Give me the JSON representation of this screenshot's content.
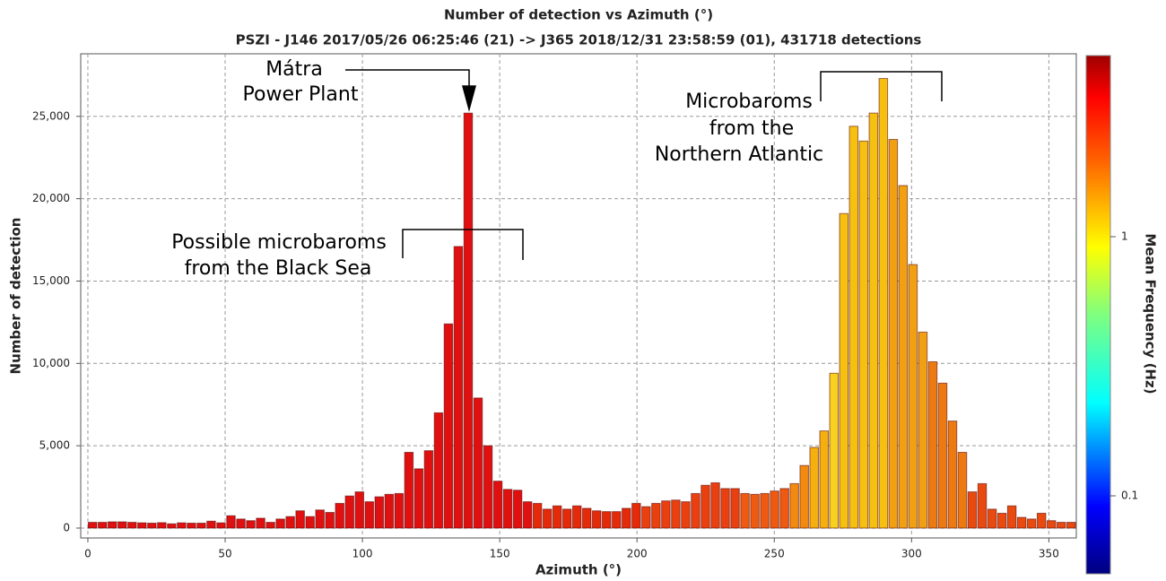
{
  "chart_data": {
    "type": "histogram",
    "title": "Number of detection vs Azimuth (°)",
    "subtitle": "PSZI - J146 2017/05/26 06:25:46 (21) -> J365 2018/12/31 23:58:59 (01), 431718 detections",
    "xlabel": "Azimuth (°)",
    "ylabel": "Number of detection",
    "colorbar_label": "Mean Frequency (Hz)",
    "bins": [
      0,
      3.6,
      7.2,
      10.8,
      14.4,
      18,
      21.6,
      25.2,
      28.8,
      32.4,
      36,
      39.6,
      43.2,
      46.8,
      50.4,
      54,
      57.6,
      61.2,
      64.8,
      68.4,
      72,
      75.6,
      79.2,
      82.8,
      86.4,
      90,
      93.6,
      97.2,
      100.8,
      104.4,
      108,
      111.6,
      115.2,
      118.8,
      122.4,
      126,
      129.6,
      133.2,
      136.8,
      140.4,
      144,
      147.6,
      151.2,
      154.8,
      158.4,
      162,
      165.6,
      169.2,
      172.8,
      176.4,
      180,
      183.6,
      187.2,
      190.8,
      194.4,
      198,
      201.6,
      205.2,
      208.8,
      212.4,
      216,
      219.6,
      223.2,
      226.8,
      230.4,
      234,
      237.6,
      241.2,
      244.8,
      248.4,
      252,
      255.6,
      259.2,
      262.8,
      266.4,
      270,
      273.6,
      277.2,
      280.8,
      284.4,
      288,
      291.6,
      295.2,
      298.8,
      302.4,
      306,
      309.6,
      313.2,
      316.8,
      320.4,
      324,
      327.6,
      331.2,
      334.8,
      338.4,
      342,
      345.6,
      349.2,
      352.8,
      356.4,
      360
    ],
    "values": [
      350,
      350,
      380,
      380,
      350,
      320,
      300,
      330,
      260,
      320,
      300,
      300,
      420,
      320,
      750,
      550,
      450,
      600,
      350,
      550,
      700,
      1050,
      700,
      1100,
      950,
      1500,
      1950,
      2200,
      1600,
      1900,
      2050,
      2100,
      4600,
      3600,
      4700,
      7000,
      12400,
      17100,
      25200,
      7900,
      5000,
      2850,
      2350,
      2300,
      1600,
      1500,
      1150,
      1350,
      1150,
      1350,
      1200,
      1050,
      1000,
      1000,
      1200,
      1500,
      1300,
      1500,
      1650,
      1700,
      1600,
      2100,
      2600,
      2750,
      2400,
      2400,
      2100,
      2050,
      2100,
      2250,
      2400,
      2700,
      3800,
      4900,
      5900,
      9400,
      19100,
      24400,
      23500,
      25200,
      27300,
      23600,
      20800,
      16000,
      11900,
      10100,
      8800,
      6500,
      4600,
      2200,
      2700,
      1150,
      900,
      1350,
      650,
      550,
      900,
      450,
      350,
      350
    ],
    "colors": [
      "#e01010",
      "#e01010",
      "#e01010",
      "#e01010",
      "#e01010",
      "#e01010",
      "#e01010",
      "#e01010",
      "#e01010",
      "#e01010",
      "#e01010",
      "#e01010",
      "#e01010",
      "#e01010",
      "#e01010",
      "#e01010",
      "#e01010",
      "#e01010",
      "#e01010",
      "#e01010",
      "#e01010",
      "#e01010",
      "#e01010",
      "#e01010",
      "#e01010",
      "#e01010",
      "#e01010",
      "#e01010",
      "#e01010",
      "#e01010",
      "#e01010",
      "#e01010",
      "#e01010",
      "#e01010",
      "#e01010",
      "#e01010",
      "#e01010",
      "#e01010",
      "#e01010",
      "#e01010",
      "#e01010",
      "#e01010",
      "#e01010",
      "#e01010",
      "#e01010",
      "#e52a0a",
      "#e52a0a",
      "#e52a0a",
      "#e52a0a",
      "#e52a0a",
      "#e52a0a",
      "#e52a0a",
      "#e52a0a",
      "#e52a0a",
      "#e52a0a",
      "#e52a0a",
      "#ea4010",
      "#ea4010",
      "#ea4010",
      "#ea4010",
      "#ea4010",
      "#ea4010",
      "#ea4010",
      "#ea4010",
      "#ea4010",
      "#ea4010",
      "#ee5a10",
      "#ee5a10",
      "#ee5a10",
      "#ee5a10",
      "#ee5a10",
      "#f28a10",
      "#f28a10",
      "#f5b010",
      "#f5b010",
      "#f8d020",
      "#f6c010",
      "#f6c010",
      "#f6c010",
      "#f6c010",
      "#f6c010",
      "#f0a010",
      "#f0a010",
      "#f0a010",
      "#f0a010",
      "#ec7a10",
      "#ec7a10",
      "#ec7a10",
      "#ec7a10",
      "#e84a10",
      "#e84a10",
      "#e84a10",
      "#e84a10",
      "#e84a10",
      "#e84a10",
      "#e84a10",
      "#e84a10",
      "#e84a10",
      "#e84a10",
      "#e84a10",
      "#e84a10"
    ],
    "xlim": [
      -2.6,
      360
    ],
    "xticks": [
      0,
      50,
      100,
      150,
      200,
      250,
      300,
      350
    ],
    "ylim": [
      -600,
      28800
    ],
    "yticks": [
      0,
      {
        "value": 5000,
        "label": "5,000"
      },
      {
        "value": 10000,
        "label": "10,000"
      },
      {
        "value": 15000,
        "label": "15,000"
      },
      {
        "value": 20000,
        "label": "20,000"
      },
      {
        "value": 25000,
        "label": "25,000"
      }
    ],
    "grid": true,
    "clim": [
      0.05,
      5
    ],
    "clog": true,
    "cticks": [
      0.1,
      1
    ],
    "annotations": [
      {
        "lines": [
          "Mátra",
          "Power Plant"
        ]
      },
      {
        "lines": [
          "Microbaroms",
          "from the",
          "Northern Atlantic"
        ]
      },
      {
        "lines": [
          "Possible microbaroms",
          "from the Black Sea"
        ]
      }
    ]
  }
}
